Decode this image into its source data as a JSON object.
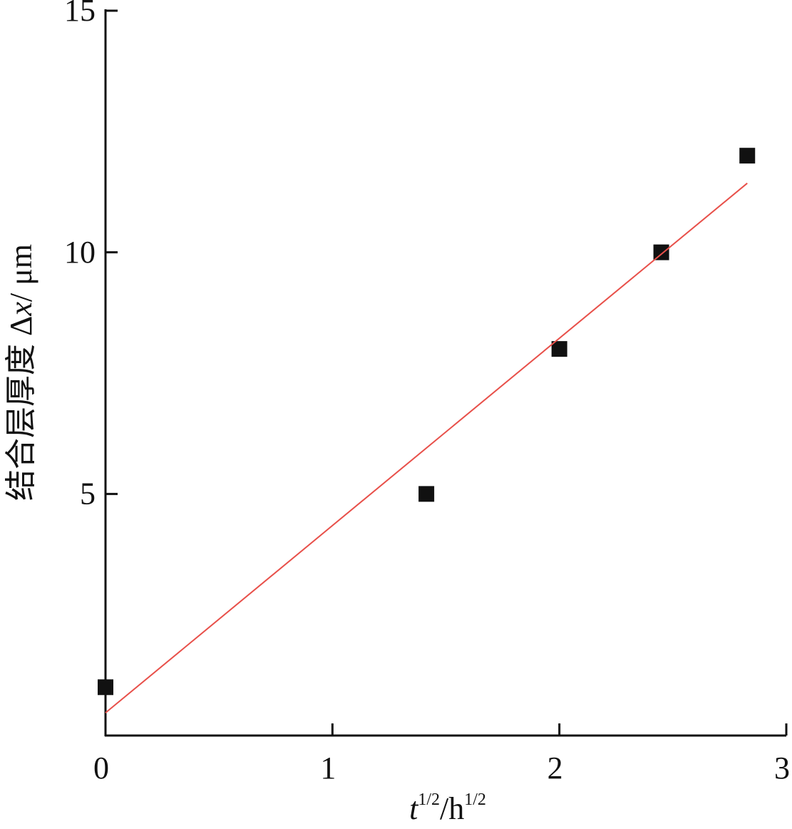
{
  "chart_data": {
    "type": "scatter",
    "xlabel_parts": [
      "t",
      "1/2",
      "/h",
      "1/2"
    ],
    "ylabel_parts": [
      "结合层厚度 Δ",
      "x",
      "/ μm"
    ],
    "series": [
      {
        "color": "#111111",
        "x": [
          0,
          1.414,
          2,
          2.449,
          2.828
        ],
        "values": [
          1,
          5,
          8,
          10,
          12
        ]
      },
      {
        "type": "line",
        "color": "#e8504a",
        "x": [
          0,
          2.828
        ],
        "values": [
          0.47,
          11.43
        ]
      }
    ],
    "xlim": [
      0,
      3
    ],
    "ylim": [
      0,
      15
    ],
    "xticks": [
      0,
      1,
      2,
      3
    ],
    "yticks": [
      5,
      10,
      15
    ]
  }
}
